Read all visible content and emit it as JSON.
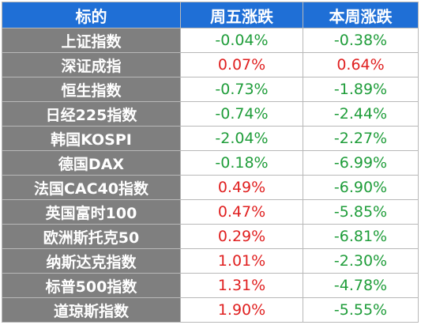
{
  "header": {
    "col_name": "标的",
    "col_fri": "周五涨跌",
    "col_week": "本周涨跌"
  },
  "colors": {
    "header_bg": "#1f6fd6",
    "name_bg": "#7f7f7f",
    "up": "#e02020",
    "down": "#1f9d3a"
  },
  "rows": [
    {
      "name": "上证指数",
      "fri": "-0.04%",
      "week": "-0.38%"
    },
    {
      "name": "深证成指",
      "fri": "0.07%",
      "week": "0.64%"
    },
    {
      "name": "恒生指数",
      "fri": "-0.73%",
      "week": "-1.89%"
    },
    {
      "name": "日经225指数",
      "fri": "-0.74%",
      "week": "-2.44%"
    },
    {
      "name": "韩国KOSPI",
      "fri": "-2.04%",
      "week": "-2.27%"
    },
    {
      "name": "德国DAX",
      "fri": "-0.18%",
      "week": "-6.99%"
    },
    {
      "name": "法国CAC40指数",
      "fri": "0.49%",
      "week": "-6.90%"
    },
    {
      "name": "英国富时100",
      "fri": "0.47%",
      "week": "-5.85%"
    },
    {
      "name": "欧洲斯托克50",
      "fri": "0.29%",
      "week": "-6.81%"
    },
    {
      "name": "纳斯达克指数",
      "fri": "1.01%",
      "week": "-2.30%"
    },
    {
      "name": "标普500指数",
      "fri": "1.31%",
      "week": "-4.78%"
    },
    {
      "name": "道琼斯指数",
      "fri": "1.90%",
      "week": "-5.55%"
    }
  ]
}
